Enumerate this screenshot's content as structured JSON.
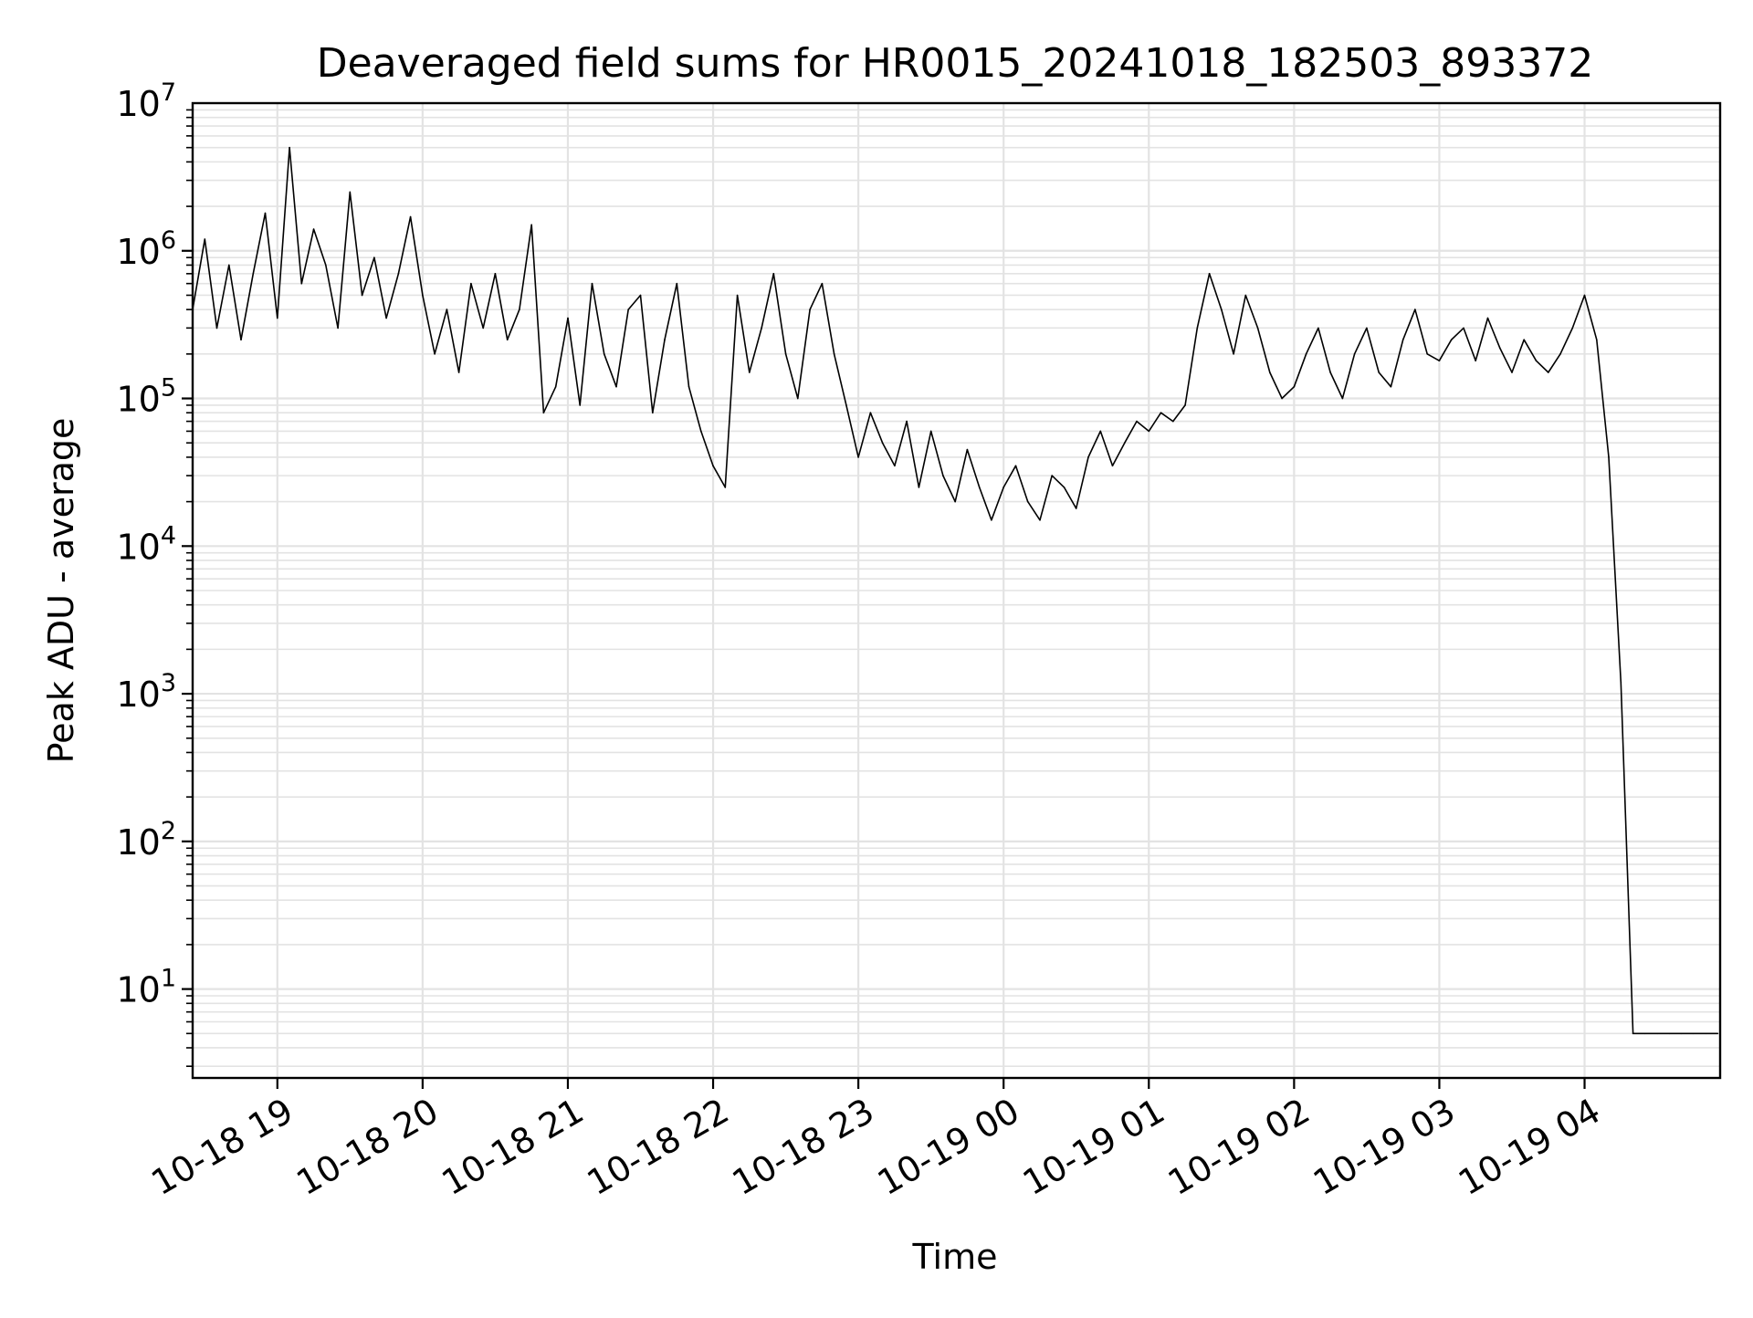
{
  "chart_data": {
    "type": "line",
    "title": "Deaveraged field sums for HR0015_20241018_182503_893372",
    "xlabel": "Time",
    "ylabel": "Peak ADU - average",
    "y_scale": "log",
    "ylim": [
      2.5,
      10000000
    ],
    "xlim": [
      "2024-10-18 18:25",
      "2024-10-19 04:56"
    ],
    "grid": true,
    "legend": "none",
    "colors": {
      "line": "#000000",
      "grid": "#e3e3e3",
      "axes": "#000000",
      "background": "#ffffff"
    },
    "x_ticks": [
      {
        "label": "10-18 19",
        "time": "2024-10-18 19:00"
      },
      {
        "label": "10-18 20",
        "time": "2024-10-18 20:00"
      },
      {
        "label": "10-18 21",
        "time": "2024-10-18 21:00"
      },
      {
        "label": "10-18 22",
        "time": "2024-10-18 22:00"
      },
      {
        "label": "10-18 23",
        "time": "2024-10-18 23:00"
      },
      {
        "label": "10-19 00",
        "time": "2024-10-19 00:00"
      },
      {
        "label": "10-19 01",
        "time": "2024-10-19 01:00"
      },
      {
        "label": "10-19 02",
        "time": "2024-10-19 02:00"
      },
      {
        "label": "10-19 03",
        "time": "2024-10-19 03:00"
      },
      {
        "label": "10-19 04",
        "time": "2024-10-19 04:00"
      }
    ],
    "y_ticks": [
      {
        "base": "10",
        "exp": "1",
        "value": 10
      },
      {
        "base": "10",
        "exp": "2",
        "value": 100
      },
      {
        "base": "10",
        "exp": "3",
        "value": 1000
      },
      {
        "base": "10",
        "exp": "4",
        "value": 10000
      },
      {
        "base": "10",
        "exp": "5",
        "value": 100000
      },
      {
        "base": "10",
        "exp": "6",
        "value": 1000000
      },
      {
        "base": "10",
        "exp": "7",
        "value": 10000000
      }
    ],
    "series": [
      {
        "x": [
          "2024-10-18 18:25",
          "2024-10-18 18:30",
          "2024-10-18 18:35",
          "2024-10-18 18:40",
          "2024-10-18 18:45",
          "2024-10-18 18:50",
          "2024-10-18 18:55",
          "2024-10-18 19:00",
          "2024-10-18 19:05",
          "2024-10-18 19:10",
          "2024-10-18 19:15",
          "2024-10-18 19:20",
          "2024-10-18 19:25",
          "2024-10-18 19:30",
          "2024-10-18 19:35",
          "2024-10-18 19:40",
          "2024-10-18 19:45",
          "2024-10-18 19:50",
          "2024-10-18 19:55",
          "2024-10-18 20:00",
          "2024-10-18 20:05",
          "2024-10-18 20:10",
          "2024-10-18 20:15",
          "2024-10-18 20:20",
          "2024-10-18 20:25",
          "2024-10-18 20:30",
          "2024-10-18 20:35",
          "2024-10-18 20:40",
          "2024-10-18 20:45",
          "2024-10-18 20:50",
          "2024-10-18 20:55",
          "2024-10-18 21:00",
          "2024-10-18 21:05",
          "2024-10-18 21:10",
          "2024-10-18 21:15",
          "2024-10-18 21:20",
          "2024-10-18 21:25",
          "2024-10-18 21:30",
          "2024-10-18 21:35",
          "2024-10-18 21:40",
          "2024-10-18 21:45",
          "2024-10-18 21:50",
          "2024-10-18 21:55",
          "2024-10-18 22:00",
          "2024-10-18 22:05",
          "2024-10-18 22:10",
          "2024-10-18 22:15",
          "2024-10-18 22:20",
          "2024-10-18 22:25",
          "2024-10-18 22:30",
          "2024-10-18 22:35",
          "2024-10-18 22:40",
          "2024-10-18 22:45",
          "2024-10-18 22:50",
          "2024-10-18 22:55",
          "2024-10-18 23:00",
          "2024-10-18 23:05",
          "2024-10-18 23:10",
          "2024-10-18 23:15",
          "2024-10-18 23:20",
          "2024-10-18 23:25",
          "2024-10-18 23:30",
          "2024-10-18 23:35",
          "2024-10-18 23:40",
          "2024-10-18 23:45",
          "2024-10-18 23:50",
          "2024-10-18 23:55",
          "2024-10-19 00:00",
          "2024-10-19 00:05",
          "2024-10-19 00:10",
          "2024-10-19 00:15",
          "2024-10-19 00:20",
          "2024-10-19 00:25",
          "2024-10-19 00:30",
          "2024-10-19 00:35",
          "2024-10-19 00:40",
          "2024-10-19 00:45",
          "2024-10-19 00:50",
          "2024-10-19 00:55",
          "2024-10-19 01:00",
          "2024-10-19 01:05",
          "2024-10-19 01:10",
          "2024-10-19 01:15",
          "2024-10-19 01:20",
          "2024-10-19 01:25",
          "2024-10-19 01:30",
          "2024-10-19 01:35",
          "2024-10-19 01:40",
          "2024-10-19 01:45",
          "2024-10-19 01:50",
          "2024-10-19 01:55",
          "2024-10-19 02:00",
          "2024-10-19 02:05",
          "2024-10-19 02:10",
          "2024-10-19 02:15",
          "2024-10-19 02:20",
          "2024-10-19 02:25",
          "2024-10-19 02:30",
          "2024-10-19 02:35",
          "2024-10-19 02:40",
          "2024-10-19 02:45",
          "2024-10-19 02:50",
          "2024-10-19 02:55",
          "2024-10-19 03:00",
          "2024-10-19 03:05",
          "2024-10-19 03:10",
          "2024-10-19 03:15",
          "2024-10-19 03:20",
          "2024-10-19 03:25",
          "2024-10-19 03:30",
          "2024-10-19 03:35",
          "2024-10-19 03:40",
          "2024-10-19 03:45",
          "2024-10-19 03:50",
          "2024-10-19 03:55",
          "2024-10-19 04:00",
          "2024-10-19 04:05",
          "2024-10-19 04:10",
          "2024-10-19 04:15",
          "2024-10-19 04:20",
          "2024-10-19 04:25",
          "2024-10-19 04:30",
          "2024-10-19 04:35",
          "2024-10-19 04:40",
          "2024-10-19 04:45",
          "2024-10-19 04:50",
          "2024-10-19 04:55"
        ],
        "y": [
          400000,
          1200000,
          300000,
          800000,
          250000,
          700000,
          1800000,
          350000,
          5000000,
          600000,
          1400000,
          800000,
          300000,
          2500000,
          500000,
          900000,
          350000,
          700000,
          1700000,
          500000,
          200000,
          400000,
          150000,
          600000,
          300000,
          700000,
          250000,
          400000,
          1500000,
          80000,
          120000,
          350000,
          90000,
          600000,
          200000,
          120000,
          400000,
          500000,
          80000,
          250000,
          600000,
          120000,
          60000,
          35000,
          25000,
          500000,
          150000,
          300000,
          700000,
          200000,
          100000,
          400000,
          600000,
          200000,
          90000,
          40000,
          80000,
          50000,
          35000,
          70000,
          25000,
          60000,
          30000,
          20000,
          45000,
          25000,
          15000,
          25000,
          35000,
          20000,
          15000,
          30000,
          25000,
          18000,
          40000,
          60000,
          35000,
          50000,
          70000,
          60000,
          80000,
          70000,
          90000,
          300000,
          700000,
          400000,
          200000,
          500000,
          300000,
          150000,
          100000,
          120000,
          200000,
          300000,
          150000,
          100000,
          200000,
          300000,
          150000,
          120000,
          250000,
          400000,
          200000,
          180000,
          250000,
          300000,
          180000,
          350000,
          220000,
          150000,
          250000,
          180000,
          150000,
          200000,
          300000,
          500000,
          250000,
          40000,
          1200,
          5,
          5,
          5,
          5,
          5,
          5,
          5,
          5
        ]
      }
    ]
  }
}
